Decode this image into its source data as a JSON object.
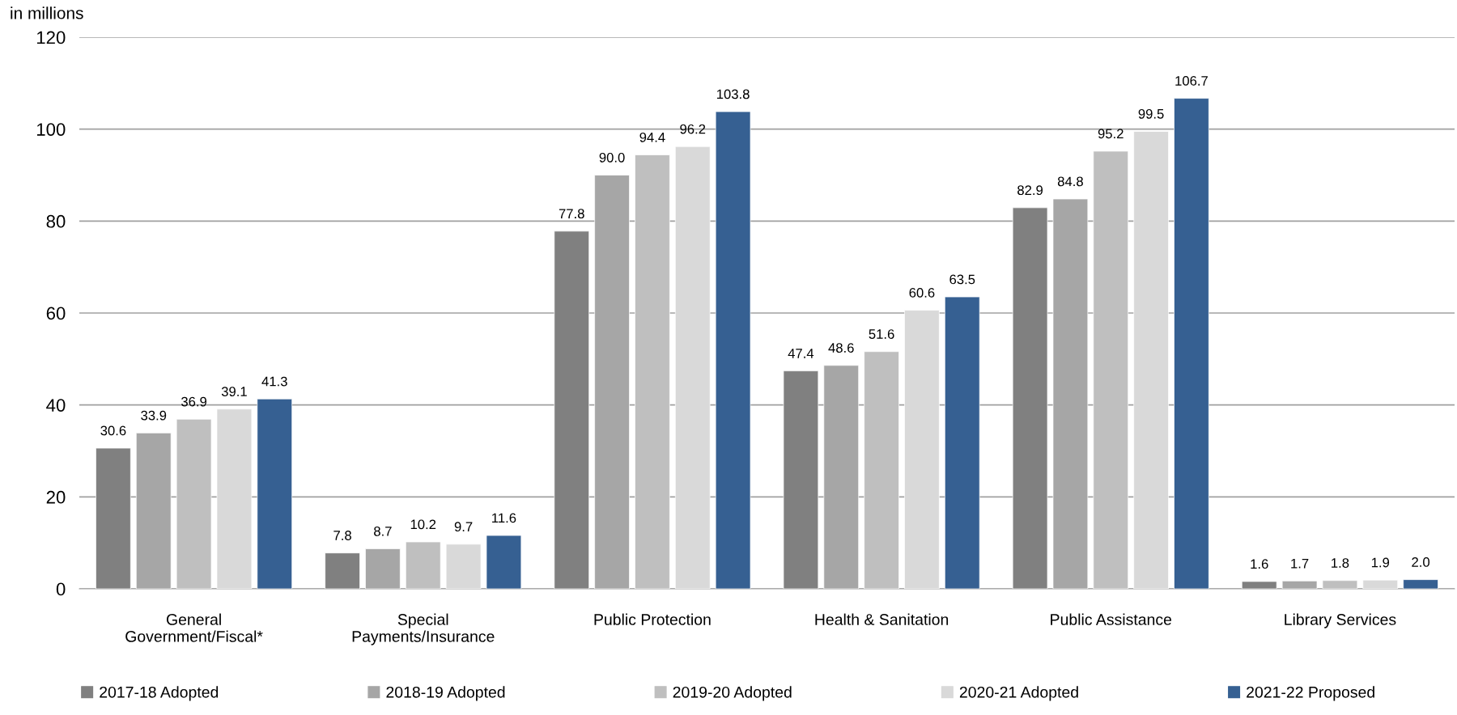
{
  "chart_data": {
    "type": "bar",
    "ylabel": "in millions",
    "categories": [
      "General\nGovernment/Fiscal*",
      "Special\nPayments/Insurance",
      "Public Protection",
      "Health & Sanitation",
      "Public Assistance",
      "Library Services"
    ],
    "series": [
      {
        "name": "2017-18 Adopted",
        "color": "#808080",
        "values": [
          30.6,
          7.8,
          77.8,
          47.4,
          82.9,
          1.6
        ],
        "value_labels": [
          "30.6",
          "7.8",
          "77.8",
          "47.4",
          "82.9",
          "1.6"
        ]
      },
      {
        "name": "2018-19 Adopted",
        "color": "#a6a6a6",
        "values": [
          33.9,
          8.7,
          90,
          48.6,
          84.8,
          1.7
        ],
        "value_labels": [
          "33.9",
          "8.7",
          "90.0",
          "48.6",
          "84.8",
          "1.7"
        ]
      },
      {
        "name": "2019-20 Adopted",
        "color": "#bfbfbf",
        "values": [
          36.9,
          10.2,
          94.4,
          51.6,
          95.2,
          1.8
        ],
        "value_labels": [
          "36.9",
          "10.2",
          "94.4",
          "51.6",
          "95.2",
          "1.8"
        ]
      },
      {
        "name": "2020-21 Adopted",
        "color": "#d9d9d9",
        "values": [
          39.1,
          9.7,
          96.2,
          60.6,
          99.5,
          1.9
        ],
        "value_labels": [
          "39.1",
          "9.7",
          "96.2",
          "60.6",
          "99.5",
          "1.9"
        ]
      },
      {
        "name": "2021-22 Proposed",
        "color": "#366092",
        "values": [
          41.3,
          11.6,
          103.8,
          63.5,
          106.7,
          2
        ],
        "value_labels": [
          "41.3",
          "11.6",
          "103.8",
          "63.5",
          "106.7",
          "2.0"
        ]
      }
    ],
    "ylim": [
      0,
      120
    ],
    "yticks": [
      0,
      20,
      40,
      60,
      80,
      100,
      120
    ],
    "grid": "y",
    "legend": "bottom"
  }
}
